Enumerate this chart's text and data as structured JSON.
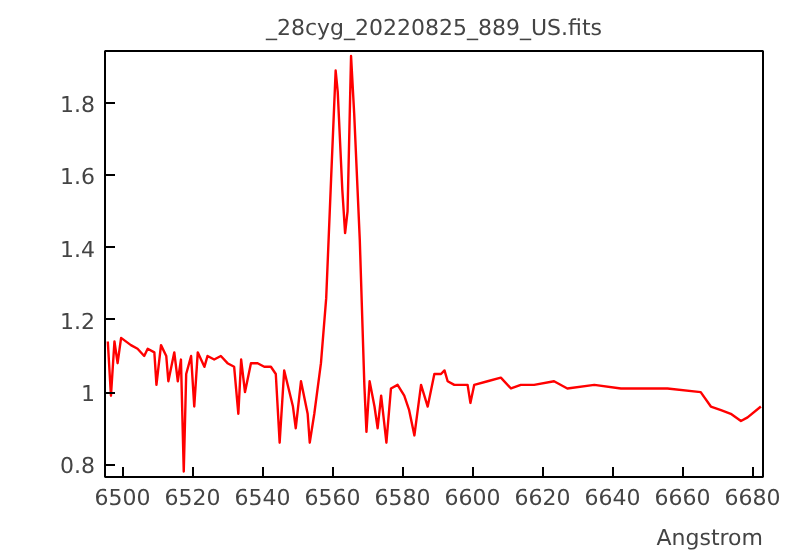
{
  "chart_data": {
    "type": "line",
    "title": "_28cyg_20220825_889_US.fits",
    "xlabel": "Angstrom",
    "x": [
      6495.8,
      6496.7,
      6497.7,
      6498.6,
      6499.6,
      6502.4,
      6504.3,
      6506.2,
      6507.2,
      6509.1,
      6509.7,
      6511.0,
      6512.5,
      6513.1,
      6514.8,
      6515.8,
      6516.7,
      6517.5,
      6518.2,
      6519.6,
      6520.5,
      6521.5,
      6523.4,
      6524.3,
      6526.2,
      6528.1,
      6530.0,
      6531.9,
      6533.1,
      6533.9,
      6535.0,
      6536.7,
      6538.6,
      6540.5,
      6542.4,
      6543.8,
      6544.9,
      6546.2,
      6548.7,
      6549.5,
      6551.0,
      6552.9,
      6553.5,
      6554.8,
      6556.7,
      6558.2,
      6559.6,
      6560.9,
      6561.5,
      6562.8,
      6563.6,
      6564.3,
      6565.3,
      6566.2,
      6567.8,
      6569.1,
      6569.7,
      6570.6,
      6572.0,
      6572.9,
      6573.9,
      6575.4,
      6576.7,
      6578.6,
      6580.5,
      6581.9,
      6583.4,
      6585.3,
      6587.2,
      6589.1,
      6591.0,
      6592.0,
      6592.9,
      6594.8,
      6598.6,
      6599.4,
      6600.5,
      6604.3,
      6608.1,
      6611.0,
      6613.8,
      6617.6,
      6623.3,
      6627.1,
      6634.8,
      6642.4,
      6648.1,
      6655.7,
      6665.2,
      6668.1,
      6671.0,
      6673.8,
      6676.7,
      6678.6,
      6682.4
    ],
    "series": [
      {
        "color": "#ff0000",
        "values": [
          1.14,
          0.99,
          1.14,
          1.08,
          1.15,
          1.13,
          1.12,
          1.1,
          1.12,
          1.11,
          1.02,
          1.13,
          1.1,
          1.03,
          1.11,
          1.03,
          1.09,
          0.78,
          1.05,
          1.1,
          0.96,
          1.11,
          1.07,
          1.1,
          1.09,
          1.1,
          1.08,
          1.07,
          0.94,
          1.09,
          1.0,
          1.08,
          1.08,
          1.07,
          1.07,
          1.05,
          0.86,
          1.06,
          0.96,
          0.9,
          1.03,
          0.94,
          0.86,
          0.94,
          1.08,
          1.26,
          1.59,
          1.89,
          1.83,
          1.56,
          1.44,
          1.5,
          1.93,
          1.77,
          1.42,
          1.02,
          0.89,
          1.03,
          0.96,
          0.9,
          0.99,
          0.86,
          1.01,
          1.02,
          0.99,
          0.95,
          0.88,
          1.02,
          0.96,
          1.05,
          1.05,
          1.06,
          1.03,
          1.02,
          1.02,
          0.97,
          1.02,
          1.03,
          1.04,
          1.01,
          1.02,
          1.02,
          1.03,
          1.01,
          1.02,
          1.01,
          1.01,
          1.01,
          1.0,
          0.96,
          0.95,
          0.94,
          0.92,
          0.93,
          0.96
        ]
      }
    ],
    "xlim": [
      6495,
      6683
    ],
    "ylim": [
      0.765,
      1.944
    ],
    "xticks": [
      6500,
      6520,
      6540,
      6560,
      6580,
      6600,
      6620,
      6640,
      6660,
      6680
    ],
    "yticks": [
      {
        "value": 0.8,
        "label": "0.8"
      },
      1,
      {
        "value": 1.2,
        "label": "1.2"
      },
      {
        "value": 1.4,
        "label": "1.4"
      },
      {
        "value": 1.6,
        "label": "1.6"
      },
      {
        "value": 1.8,
        "label": "1.8"
      }
    ],
    "grid": false,
    "marker": "none",
    "line_style": "solid"
  }
}
